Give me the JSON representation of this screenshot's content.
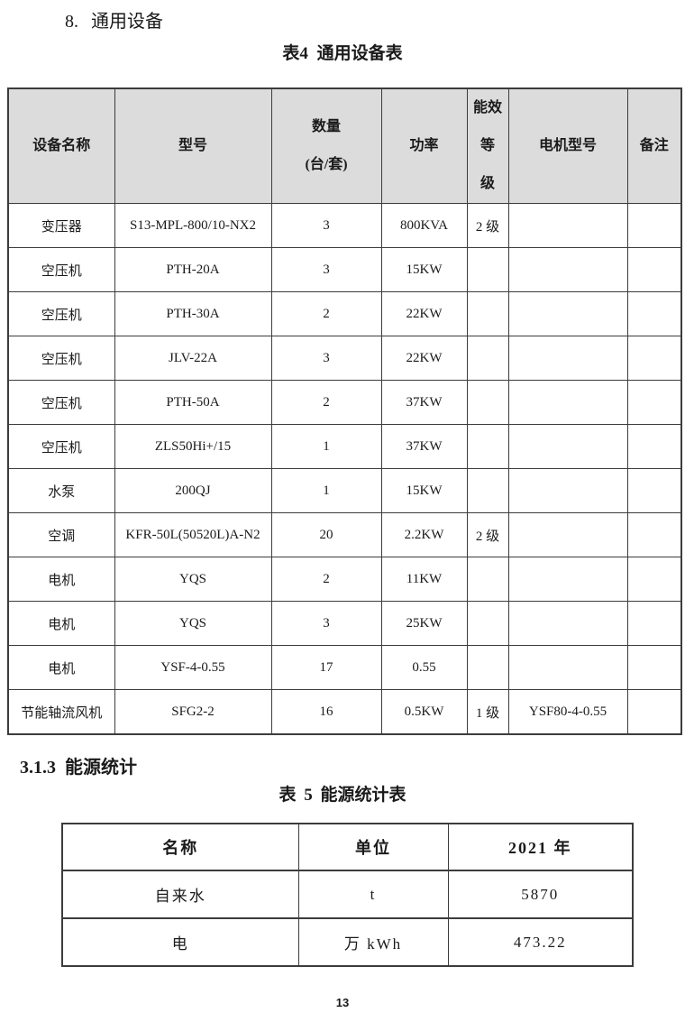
{
  "page": {
    "section_heading": "8. 通用设备",
    "table4_caption": "表4 通用设备表",
    "subsection_heading": "3.1.3 能源统计",
    "table5_caption": "表 5 能源统计表",
    "page_number": "13"
  },
  "colors": {
    "header_bg": "#dcdcdc",
    "border": "#3c3c3c",
    "text": "#1a1a1a"
  },
  "table4": {
    "columns": [
      {
        "label": "设备名称",
        "lines": [
          "设备名称"
        ]
      },
      {
        "label": "型号",
        "lines": [
          "型号"
        ]
      },
      {
        "label": "数量(台/套)",
        "lines": [
          "数量",
          "(台/套)"
        ]
      },
      {
        "label": "功率",
        "lines": [
          "功率"
        ]
      },
      {
        "label": "能效等级",
        "lines": [
          "能效等",
          "级"
        ]
      },
      {
        "label": "电机型号",
        "lines": [
          "电机型号"
        ]
      },
      {
        "label": "备注",
        "lines": [
          "备注"
        ]
      }
    ],
    "rows": [
      [
        "变压器",
        "S13-MPL-800/10-NX2",
        "3",
        "800KVA",
        "2 级",
        "",
        ""
      ],
      [
        "空压机",
        "PTH-20A",
        "3",
        "15KW",
        "",
        "",
        ""
      ],
      [
        "空压机",
        "PTH-30A",
        "2",
        "22KW",
        "",
        "",
        ""
      ],
      [
        "空压机",
        "JLV-22A",
        "3",
        "22KW",
        "",
        "",
        ""
      ],
      [
        "空压机",
        "PTH-50A",
        "2",
        "37KW",
        "",
        "",
        ""
      ],
      [
        "空压机",
        "ZLS50Hi+/15",
        "1",
        "37KW",
        "",
        "",
        ""
      ],
      [
        "水泵",
        "200QJ",
        "1",
        "15KW",
        "",
        "",
        ""
      ],
      [
        "空调",
        "KFR-50L(50520L)A-N2",
        "20",
        "2.2KW",
        "2 级",
        "",
        ""
      ],
      [
        "电机",
        "YQS",
        "2",
        "11KW",
        "",
        "",
        ""
      ],
      [
        "电机",
        "YQS",
        "3",
        "25KW",
        "",
        "",
        ""
      ],
      [
        "电机",
        "YSF-4-0.55",
        "17",
        "0.55",
        "",
        "",
        ""
      ],
      [
        "节能轴流风机",
        "SFG2-2",
        "16",
        "0.5KW",
        "1 级",
        "YSF80-4-0.55",
        ""
      ]
    ]
  },
  "table5": {
    "columns": [
      {
        "label": "名称",
        "lines": [
          "名称"
        ]
      },
      {
        "label": "单位",
        "lines": [
          "单位"
        ]
      },
      {
        "label": "2021 年",
        "lines": [
          "2021 年"
        ]
      }
    ],
    "rows": [
      [
        "自来水",
        "t",
        "5870"
      ],
      [
        "电",
        "万 kWh",
        "473.22"
      ]
    ]
  }
}
